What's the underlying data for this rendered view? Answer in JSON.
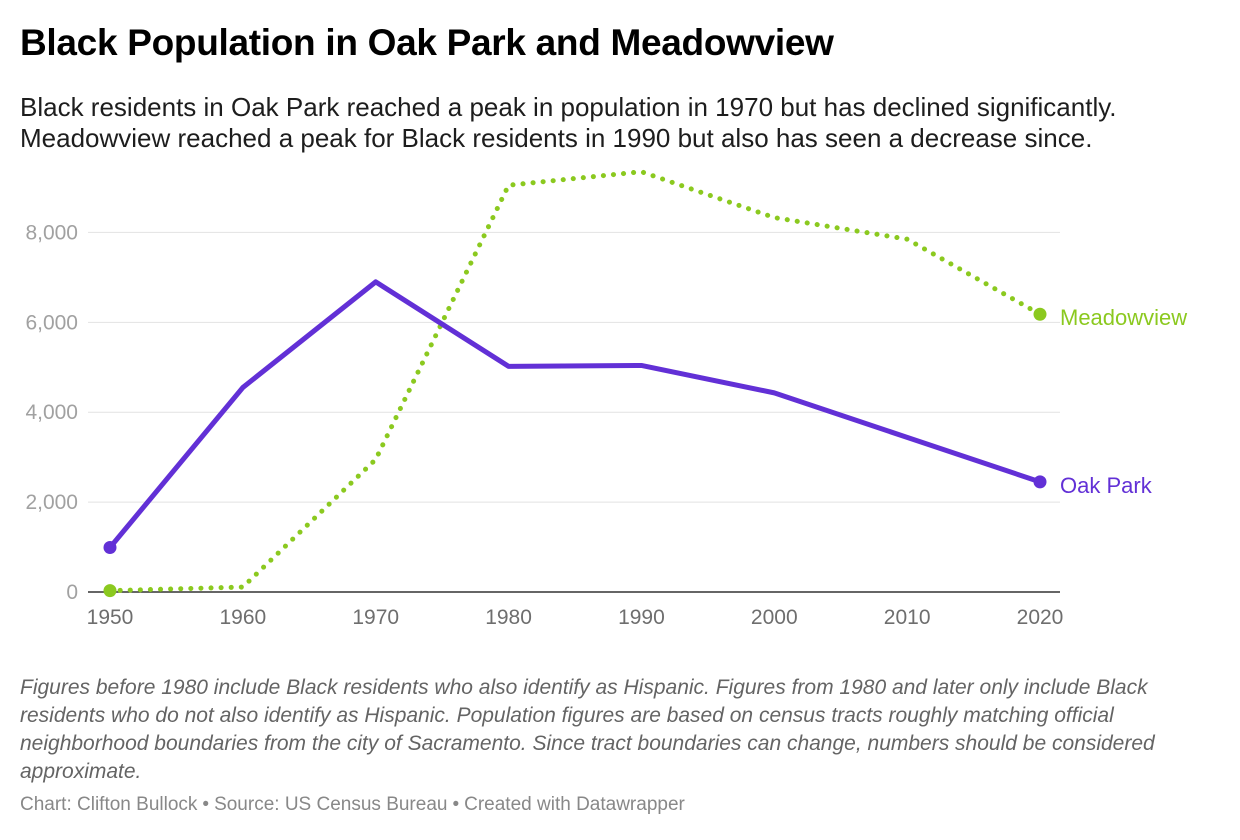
{
  "chart_data": {
    "type": "line",
    "title": "Black Population in Oak Park and Meadowview",
    "subtitle": "Black residents in Oak Park reached a peak in population in 1970 but has declined significantly. Meadowview reached a peak for Black residents in 1990 but also has seen a decrease since.",
    "x": [
      1950,
      1960,
      1970,
      1980,
      1990,
      2000,
      2010,
      2020
    ],
    "x_tick_labels": [
      "1950",
      "1960",
      "1970",
      "1980",
      "1990",
      "2000",
      "2010",
      "2020"
    ],
    "y_ticks": [
      0,
      2000,
      4000,
      6000,
      8000
    ],
    "y_tick_labels": [
      "0",
      "2,000",
      "4,000",
      "6,000",
      "8,000"
    ],
    "ylim": [
      0,
      9500
    ],
    "xlim": [
      1950,
      2020
    ],
    "grid": true,
    "legend": "direct labels at line ends",
    "series": [
      {
        "name": "Meadowview",
        "label": "Meadowview",
        "color": "#8bc91f",
        "style": "dotted",
        "values": [
          30,
          110,
          2950,
          9050,
          9350,
          8330,
          7850,
          6180
        ]
      },
      {
        "name": "Oak Park",
        "label": "Oak Park",
        "color": "#6230d6",
        "style": "solid",
        "values": [
          990,
          4550,
          6900,
          5020,
          5040,
          4430,
          3440,
          2450
        ]
      }
    ],
    "notes": "Figures before 1980 include Black residents who also identify as Hispanic. Figures from 1980 and later only include Black residents who do not also identify as Hispanic. Population figures are based on census tracts roughly matching official neighborhood boundaries from the city of Sacramento. Since tract boundaries can change, numbers should be considered approximate.",
    "credit": {
      "chart_by": "Chart: Clifton Bullock",
      "source": "Source: US Census Bureau",
      "tool": "Created with Datawrapper",
      "separator": "•"
    }
  }
}
